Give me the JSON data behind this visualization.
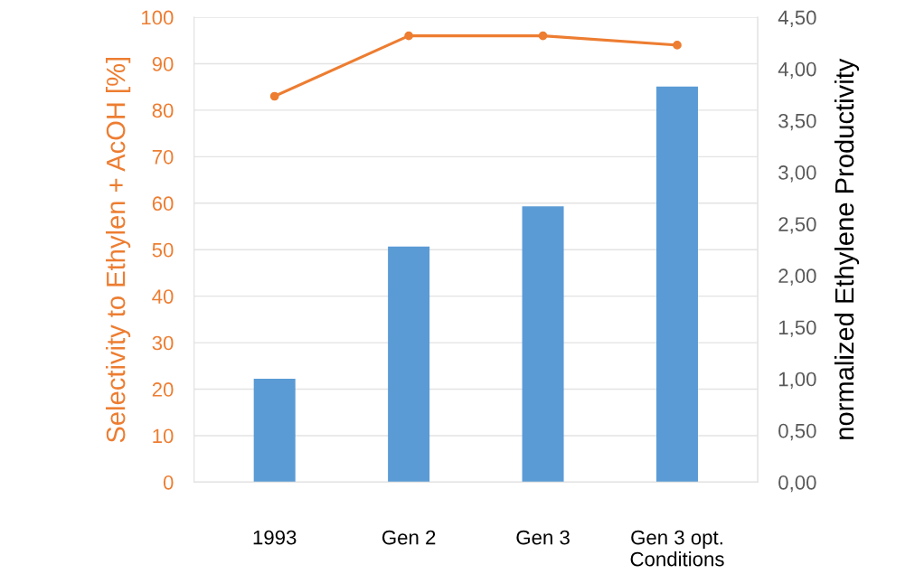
{
  "chart_data": {
    "type": "bar",
    "ylabel": "Selectivity to Ethylen + AcOH [%]",
    "y2label": "normalized Ethylene Productivity",
    "categories": [
      "1993",
      "Gen 2",
      "Gen 3",
      "Gen 3 opt.\nConditions"
    ],
    "series": [
      {
        "axis": "y2",
        "color": "#5b9bd5",
        "values": [
          1.0,
          2.28,
          2.67,
          3.83
        ]
      },
      {
        "type": "line",
        "axis": "y",
        "color": "#ed7d31",
        "marker": "circle",
        "values": [
          83,
          96,
          96,
          94
        ]
      }
    ],
    "ylim": [
      0,
      100
    ],
    "yticks": [
      0,
      10,
      20,
      30,
      40,
      50,
      60,
      70,
      80,
      90,
      100
    ],
    "y2lim": [
      0,
      4.5
    ],
    "y2ticks": [
      {
        "value": 0,
        "label": "0,00"
      },
      {
        "value": 0.5,
        "label": "0,50"
      },
      {
        "value": 1,
        "label": "1,00"
      },
      {
        "value": 1.5,
        "label": "1,50"
      },
      {
        "value": 2,
        "label": "2,00"
      },
      {
        "value": 2.5,
        "label": "2,50"
      },
      {
        "value": 3,
        "label": "3,00"
      },
      {
        "value": 3.5,
        "label": "3,50"
      },
      {
        "value": 4,
        "label": "4,00"
      },
      {
        "value": 4.5,
        "label": "4,50"
      }
    ],
    "grid": "y"
  }
}
